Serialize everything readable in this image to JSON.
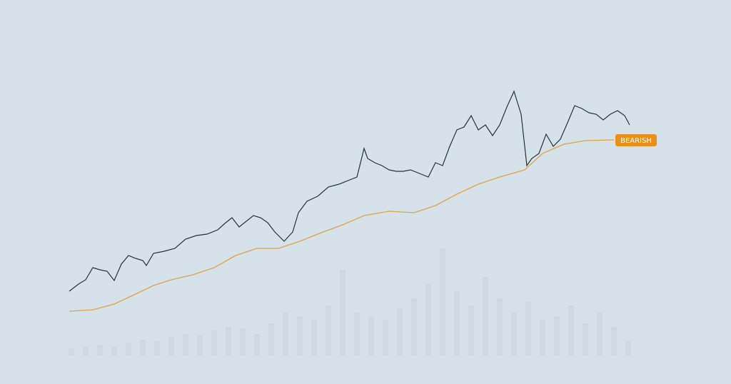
{
  "chart_data": {
    "type": "line",
    "annotation": "BEARISH",
    "xlim": [
      0,
      785
    ],
    "ylim": [
      0,
      538
    ],
    "y2lim": [
      0,
      498
    ],
    "series": [
      {
        "type": "line",
        "color": "#2b2f36",
        "x": [
          0,
          13,
          23,
          33,
          43,
          53,
          63,
          73,
          83,
          93,
          103,
          108,
          118,
          133,
          148,
          163,
          178,
          193,
          208,
          218,
          228,
          238,
          248,
          258,
          268,
          278,
          288,
          301,
          313,
          321,
          333,
          348,
          363,
          378,
          393,
          403,
          413,
          418,
          428,
          438,
          448,
          458,
          468,
          478,
          493,
          503,
          513,
          523,
          533,
          543,
          553,
          563,
          573,
          583,
          593,
          603,
          613,
          623,
          633,
          641,
          648,
          658,
          668,
          678,
          688,
          698,
          708,
          718,
          728,
          738,
          748,
          758,
          768,
          778,
          785
        ],
        "values": [
          130,
          140,
          146,
          163,
          160,
          158,
          145,
          168,
          180,
          176,
          173,
          166,
          183,
          186,
          190,
          203,
          208,
          210,
          216,
          225,
          233,
          220,
          228,
          236,
          233,
          226,
          213,
          200,
          213,
          240,
          256,
          263,
          276,
          280,
          286,
          290,
          330,
          316,
          310,
          306,
          300,
          298,
          298,
          300,
          294,
          290,
          310,
          306,
          333,
          356,
          360,
          376,
          356,
          363,
          348,
          363,
          388,
          410,
          378,
          306,
          316,
          323,
          350,
          333,
          343,
          366,
          390,
          386,
          380,
          378,
          370,
          378,
          383,
          376,
          363
        ]
      },
      {
        "type": "line",
        "color": "#e0a046",
        "x": [
          0,
          33,
          63,
          93,
          118,
          143,
          173,
          203,
          233,
          263,
          293,
          323,
          353,
          383,
          413,
          448,
          483,
          513,
          543,
          573,
          603,
          638,
          663,
          693,
          723,
          763
        ],
        "values": [
          102,
          104,
          112,
          126,
          138,
          146,
          153,
          163,
          180,
          190,
          190,
          200,
          212,
          223,
          236,
          242,
          240,
          250,
          266,
          280,
          290,
          300,
          323,
          336,
          341,
          342
        ]
      },
      {
        "type": "bar",
        "color": "#c9d6de",
        "axis": "y2",
        "x": [
          3,
          23,
          43,
          63,
          83,
          103,
          123,
          143,
          163,
          183,
          203,
          223,
          243,
          263,
          283,
          303,
          323,
          343,
          363,
          383,
          403,
          423,
          443,
          463,
          483,
          503,
          523,
          543,
          563,
          583,
          603,
          623,
          643,
          663,
          683,
          703,
          723,
          743,
          763,
          783
        ],
        "values": [
          10,
          12,
          15,
          12,
          18,
          22,
          20,
          25,
          30,
          28,
          35,
          40,
          38,
          30,
          45,
          60,
          55,
          50,
          70,
          120,
          60,
          55,
          50,
          65,
          80,
          100,
          150,
          90,
          70,
          110,
          80,
          60,
          75,
          50,
          55,
          70,
          45,
          60,
          40,
          20
        ]
      }
    ]
  }
}
